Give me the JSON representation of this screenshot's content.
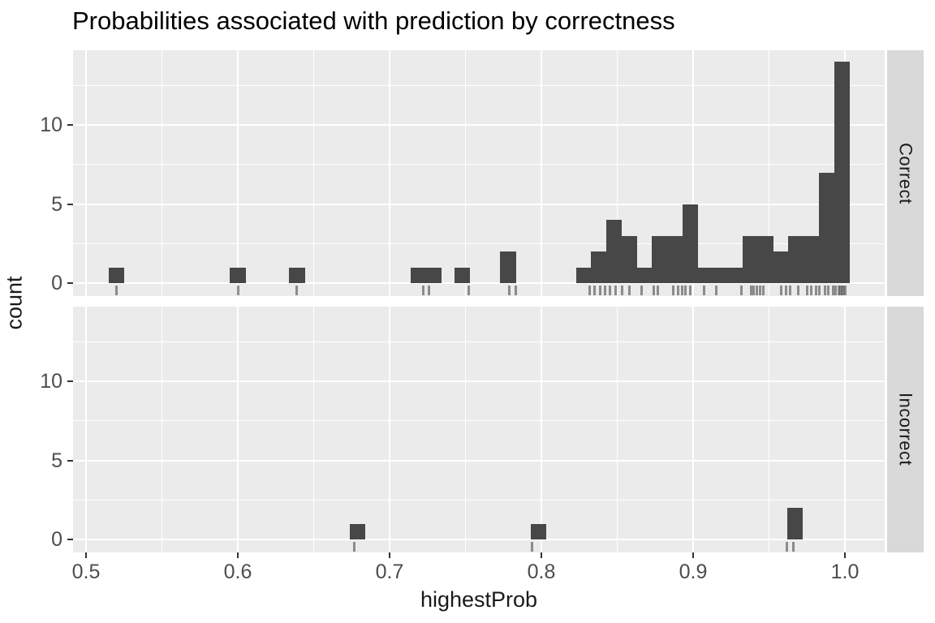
{
  "title": "Probabilities associated with prediction by correctness",
  "axes": {
    "x_label": "highestProb",
    "y_label": "count"
  },
  "colors": {
    "bar_fill": "#474747",
    "panel_background": "#ebebeb",
    "strip_background": "#d9d9d9",
    "gridline": "#ffffff",
    "tick_label": "#4d4d4d",
    "tick_mark": "#333333",
    "rug": "rgba(60,60,60,0.55)",
    "title_text": "#000000",
    "strip_text": "#1a1a1a"
  },
  "chart_data": {
    "type": "histogram",
    "title": "Probabilities associated with prediction by correctness",
    "xlabel": "highestProb",
    "ylabel": "count",
    "facet_variable": "correctness",
    "binwidth": 0.01,
    "x_axis_range": [
      0.5,
      1.0
    ],
    "y_max_count": 14,
    "x_ticks": [
      {
        "v": 0.5,
        "label": "0.5"
      },
      {
        "v": 0.6,
        "label": "0.6"
      },
      {
        "v": 0.7,
        "label": "0.7"
      },
      {
        "v": 0.8,
        "label": "0.8"
      },
      {
        "v": 0.9,
        "label": "0.9"
      },
      {
        "v": 1.0,
        "label": "1.0"
      }
    ],
    "y_ticks": [
      {
        "v": 0,
        "label": "0"
      },
      {
        "v": 5,
        "label": "5"
      },
      {
        "v": 10,
        "label": "10"
      }
    ],
    "minor_x": [
      0.55,
      0.65,
      0.75,
      0.85,
      0.95
    ],
    "minor_y": [
      2.5,
      7.5,
      12.5
    ],
    "legend": "none",
    "facets": [
      {
        "name": "Correct",
        "bins": [
          {
            "x": 0.52,
            "count": 1
          },
          {
            "x": 0.6,
            "count": 1
          },
          {
            "x": 0.639,
            "count": 1
          },
          {
            "x": 0.719,
            "count": 1
          },
          {
            "x": 0.729,
            "count": 1
          },
          {
            "x": 0.748,
            "count": 1
          },
          {
            "x": 0.778,
            "count": 2
          },
          {
            "x": 0.828,
            "count": 1
          },
          {
            "x": 0.838,
            "count": 2
          },
          {
            "x": 0.848,
            "count": 4
          },
          {
            "x": 0.858,
            "count": 3
          },
          {
            "x": 0.868,
            "count": 1
          },
          {
            "x": 0.878,
            "count": 3
          },
          {
            "x": 0.888,
            "count": 3
          },
          {
            "x": 0.898,
            "count": 5
          },
          {
            "x": 0.908,
            "count": 1
          },
          {
            "x": 0.918,
            "count": 1
          },
          {
            "x": 0.928,
            "count": 1
          },
          {
            "x": 0.938,
            "count": 3
          },
          {
            "x": 0.948,
            "count": 3
          },
          {
            "x": 0.958,
            "count": 2
          },
          {
            "x": 0.968,
            "count": 3
          },
          {
            "x": 0.978,
            "count": 3
          },
          {
            "x": 0.988,
            "count": 7
          },
          {
            "x": 0.998,
            "count": 14
          }
        ],
        "rug": [
          0.52,
          0.6,
          0.639,
          0.722,
          0.726,
          0.752,
          0.779,
          0.783,
          0.832,
          0.835,
          0.839,
          0.842,
          0.845,
          0.849,
          0.853,
          0.858,
          0.866,
          0.874,
          0.877,
          0.887,
          0.89,
          0.893,
          0.895,
          0.898,
          0.907,
          0.915,
          0.932,
          0.938,
          0.94,
          0.942,
          0.944,
          0.946,
          0.958,
          0.961,
          0.964,
          0.969,
          0.975,
          0.978,
          0.981,
          0.983,
          0.987,
          0.989,
          0.992,
          0.994,
          0.996,
          0.997,
          0.998,
          0.999,
          1.0
        ]
      },
      {
        "name": "Incorrect",
        "bins": [
          {
            "x": 0.679,
            "count": 1
          },
          {
            "x": 0.798,
            "count": 1
          },
          {
            "x": 0.967,
            "count": 2
          }
        ],
        "rug": [
          0.677,
          0.794,
          0.962,
          0.966
        ]
      }
    ]
  }
}
